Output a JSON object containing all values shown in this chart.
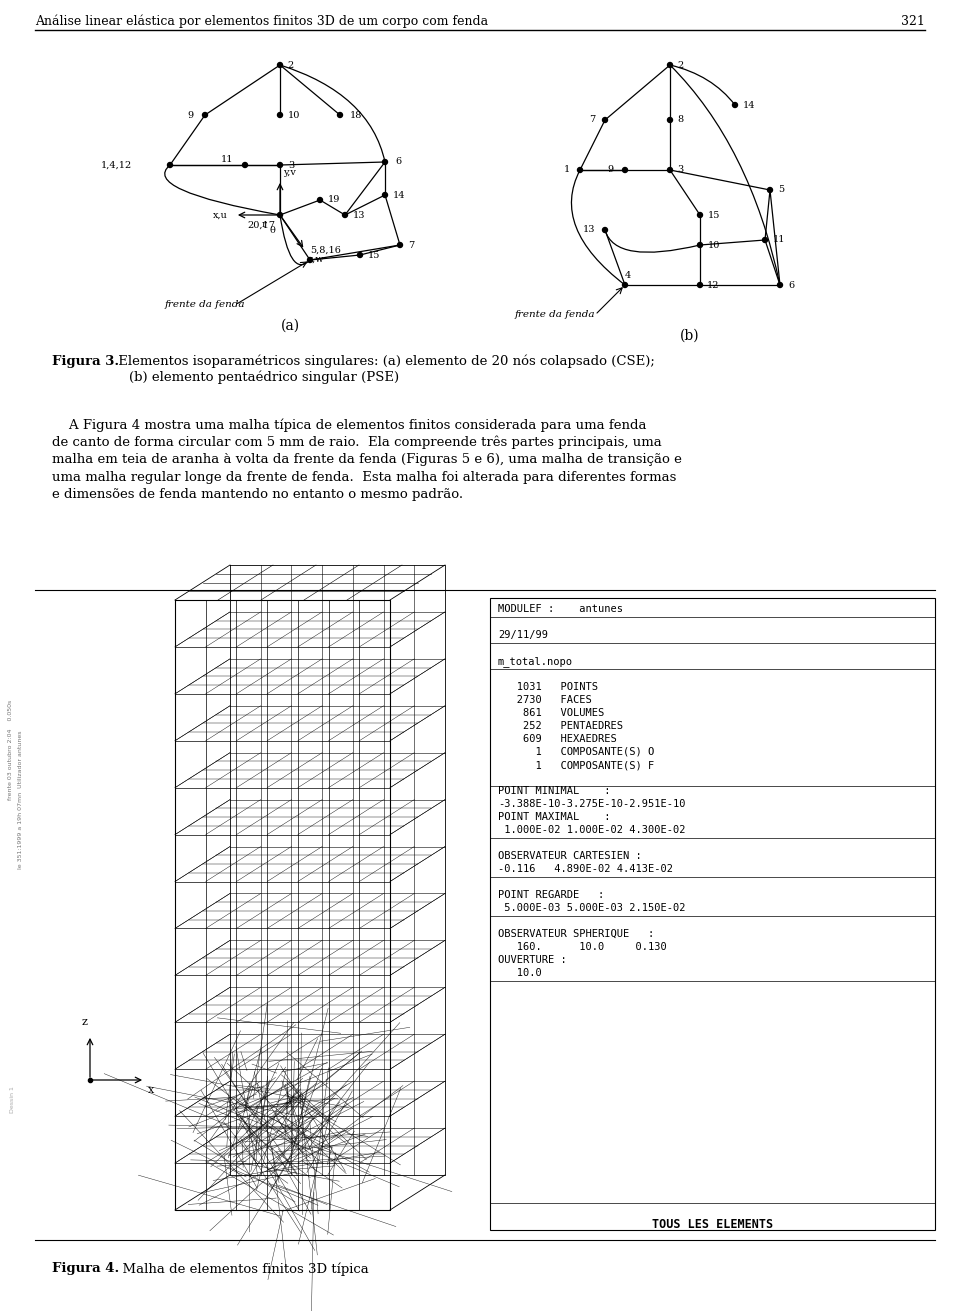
{
  "header_text": "Análise linear elástica por elementos finitos 3D de um corpo com fenda",
  "page_number": "321",
  "fig3_caption_bold": "Figura 3.",
  "fig4_caption_bold": "Figura 4.",
  "fig4_caption": "  Malha de elementos finitos 3D típica",
  "bg_color": "#ffffff",
  "modulef_lines": [
    "MODULEF :    antunes",
    "",
    "29/11/99",
    "",
    "m_total.nopo",
    "",
    "   1031   POINTS",
    "   2730   FACES",
    "    861   VOLUMES",
    "    252   PENTAEDRES",
    "    609   HEXAEDRES",
    "      1   COMPOSANTE(S) O",
    "      1   COMPOSANTE(S) F",
    "",
    "POINT MINIMAL    :",
    "-3.388E-10-3.275E-10-2.951E-10",
    "POINT MAXIMAL    :",
    " 1.000E-02 1.000E-02 4.300E-02",
    "",
    "OBSERVATEUR CARTESIEN :",
    "-0.116   4.890E-02 4.413E-02",
    "",
    "POINT REGARDE   :",
    " 5.000E-03 5.000E-03 2.150E-02",
    "",
    "OBSERVATEUR SPHERIQUE   :",
    "   160.      10.0     0.130",
    "OUVERTURE :",
    "   10.0"
  ],
  "para_lines": [
    "    A Figura 4 mostra uma malha típica de elementos finitos considerada para uma fenda",
    "de canto de forma circular com 5 mm de raio.  Ela compreende três partes principais, uma",
    "malha em teia de aranha à volta da frente da fenda (Figuras 5 e 6), uma malha de transição e",
    "uma malha regular longe da frente de fenda.  Esta malha foi alterada para diferentes formas",
    "e dimensões de fenda mantendo no entanto o mesmo padrão."
  ]
}
